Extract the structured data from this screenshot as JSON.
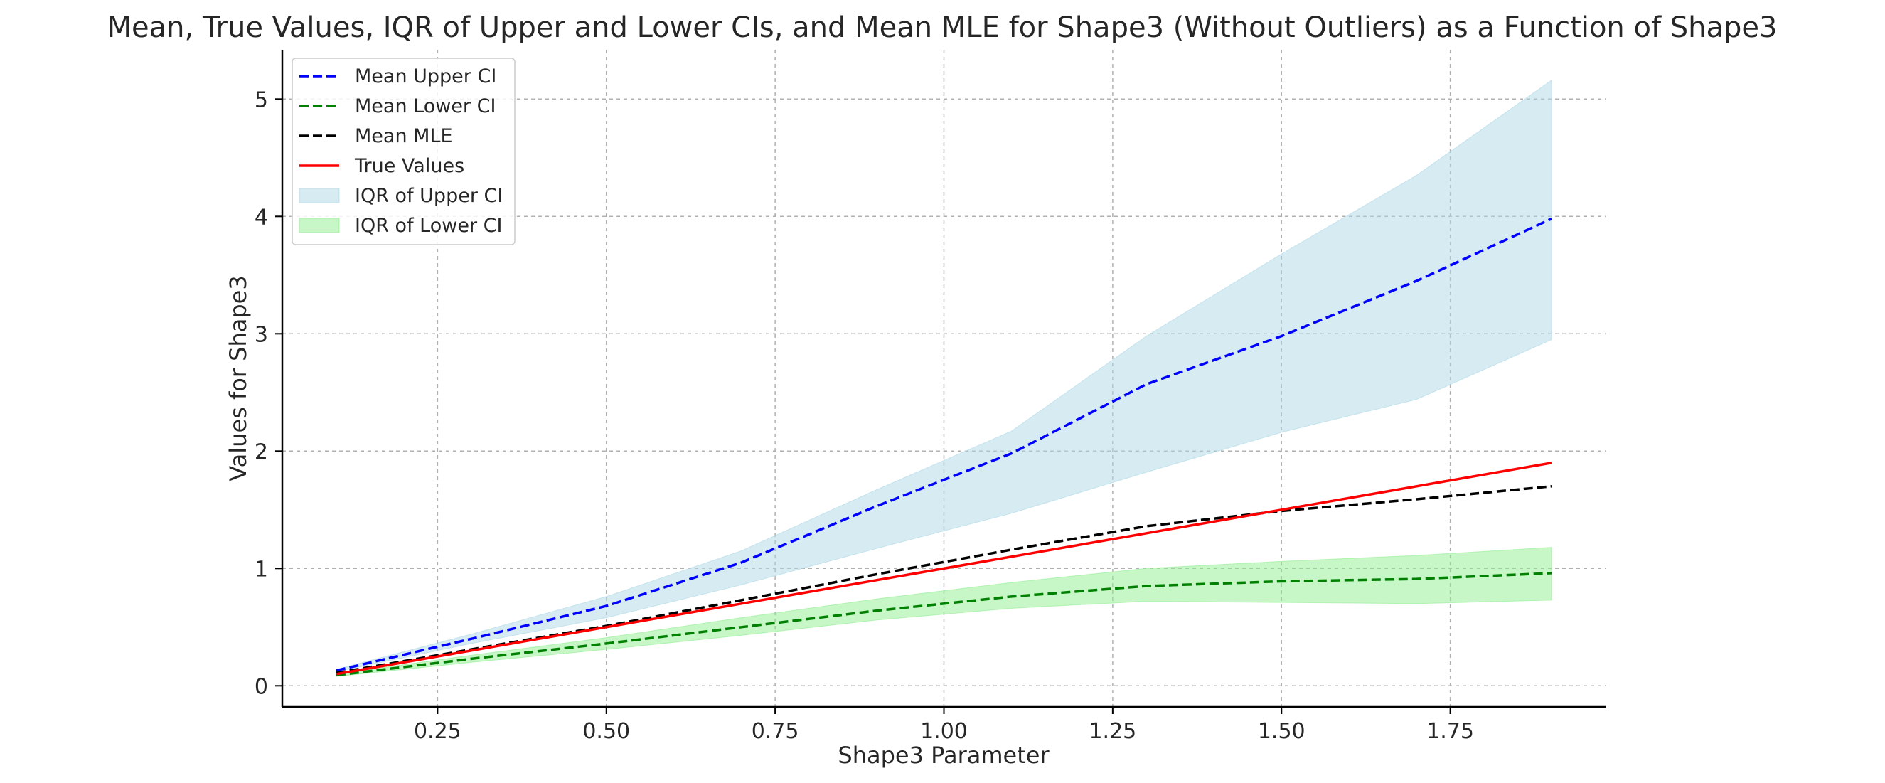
{
  "chart_data": {
    "type": "line",
    "title": "Mean, True Values, IQR of Upper and Lower CIs, and Mean MLE for Shape3 (Without Outliers) as a Function of Shape3",
    "xlabel": "Shape3 Parameter",
    "ylabel": "Values for Shape3",
    "xlim": [
      0.02,
      1.98
    ],
    "ylim": [
      -0.18,
      5.42
    ],
    "xticks": [
      0.25,
      0.5,
      0.75,
      1.0,
      1.25,
      1.5,
      1.75
    ],
    "xtick_labels": [
      "0.25",
      "0.50",
      "0.75",
      "1.00",
      "1.25",
      "1.50",
      "1.75"
    ],
    "yticks": [
      0,
      1,
      2,
      3,
      4,
      5
    ],
    "ytick_labels": [
      "0",
      "1",
      "2",
      "3",
      "4",
      "5"
    ],
    "grid": true,
    "legend_position": "top-left",
    "x": [
      0.1,
      0.3,
      0.5,
      0.7,
      0.9,
      1.1,
      1.3,
      1.5,
      1.7,
      1.9
    ],
    "series": [
      {
        "name": "Mean Upper CI",
        "style": "dashed",
        "color": "#0000ff",
        "values": [
          0.13,
          0.4,
          0.68,
          1.05,
          1.53,
          1.98,
          2.57,
          2.98,
          3.45,
          3.98
        ]
      },
      {
        "name": "Mean Lower CI",
        "style": "dashed",
        "color": "#008000",
        "values": [
          0.09,
          0.23,
          0.36,
          0.5,
          0.64,
          0.76,
          0.85,
          0.89,
          0.91,
          0.96
        ]
      },
      {
        "name": "Mean MLE",
        "style": "dashed",
        "color": "#000000",
        "values": [
          0.11,
          0.31,
          0.51,
          0.73,
          0.95,
          1.16,
          1.36,
          1.49,
          1.59,
          1.7
        ]
      },
      {
        "name": "True Values",
        "style": "solid",
        "color": "#ff0000",
        "values": [
          0.1,
          0.3,
          0.5,
          0.7,
          0.9,
          1.1,
          1.3,
          1.5,
          1.7,
          1.9
        ]
      }
    ],
    "bands": [
      {
        "name": "IQR of Upper CI",
        "color": "#add8e6",
        "lower": [
          0.12,
          0.36,
          0.58,
          0.86,
          1.17,
          1.47,
          1.82,
          2.16,
          2.44,
          2.95
        ],
        "upper": [
          0.14,
          0.44,
          0.76,
          1.15,
          1.67,
          2.17,
          2.98,
          3.68,
          4.35,
          5.16
        ]
      },
      {
        "name": "IQR of Lower CI",
        "color": "#90ee90",
        "lower": [
          0.08,
          0.2,
          0.31,
          0.43,
          0.56,
          0.66,
          0.72,
          0.71,
          0.7,
          0.73
        ],
        "upper": [
          0.1,
          0.26,
          0.41,
          0.58,
          0.74,
          0.88,
          1.0,
          1.06,
          1.11,
          1.18
        ]
      }
    ],
    "legend": [
      "Mean Upper CI",
      "Mean Lower CI",
      "Mean MLE",
      "True Values",
      "IQR of Upper CI",
      "IQR of Lower CI"
    ]
  }
}
